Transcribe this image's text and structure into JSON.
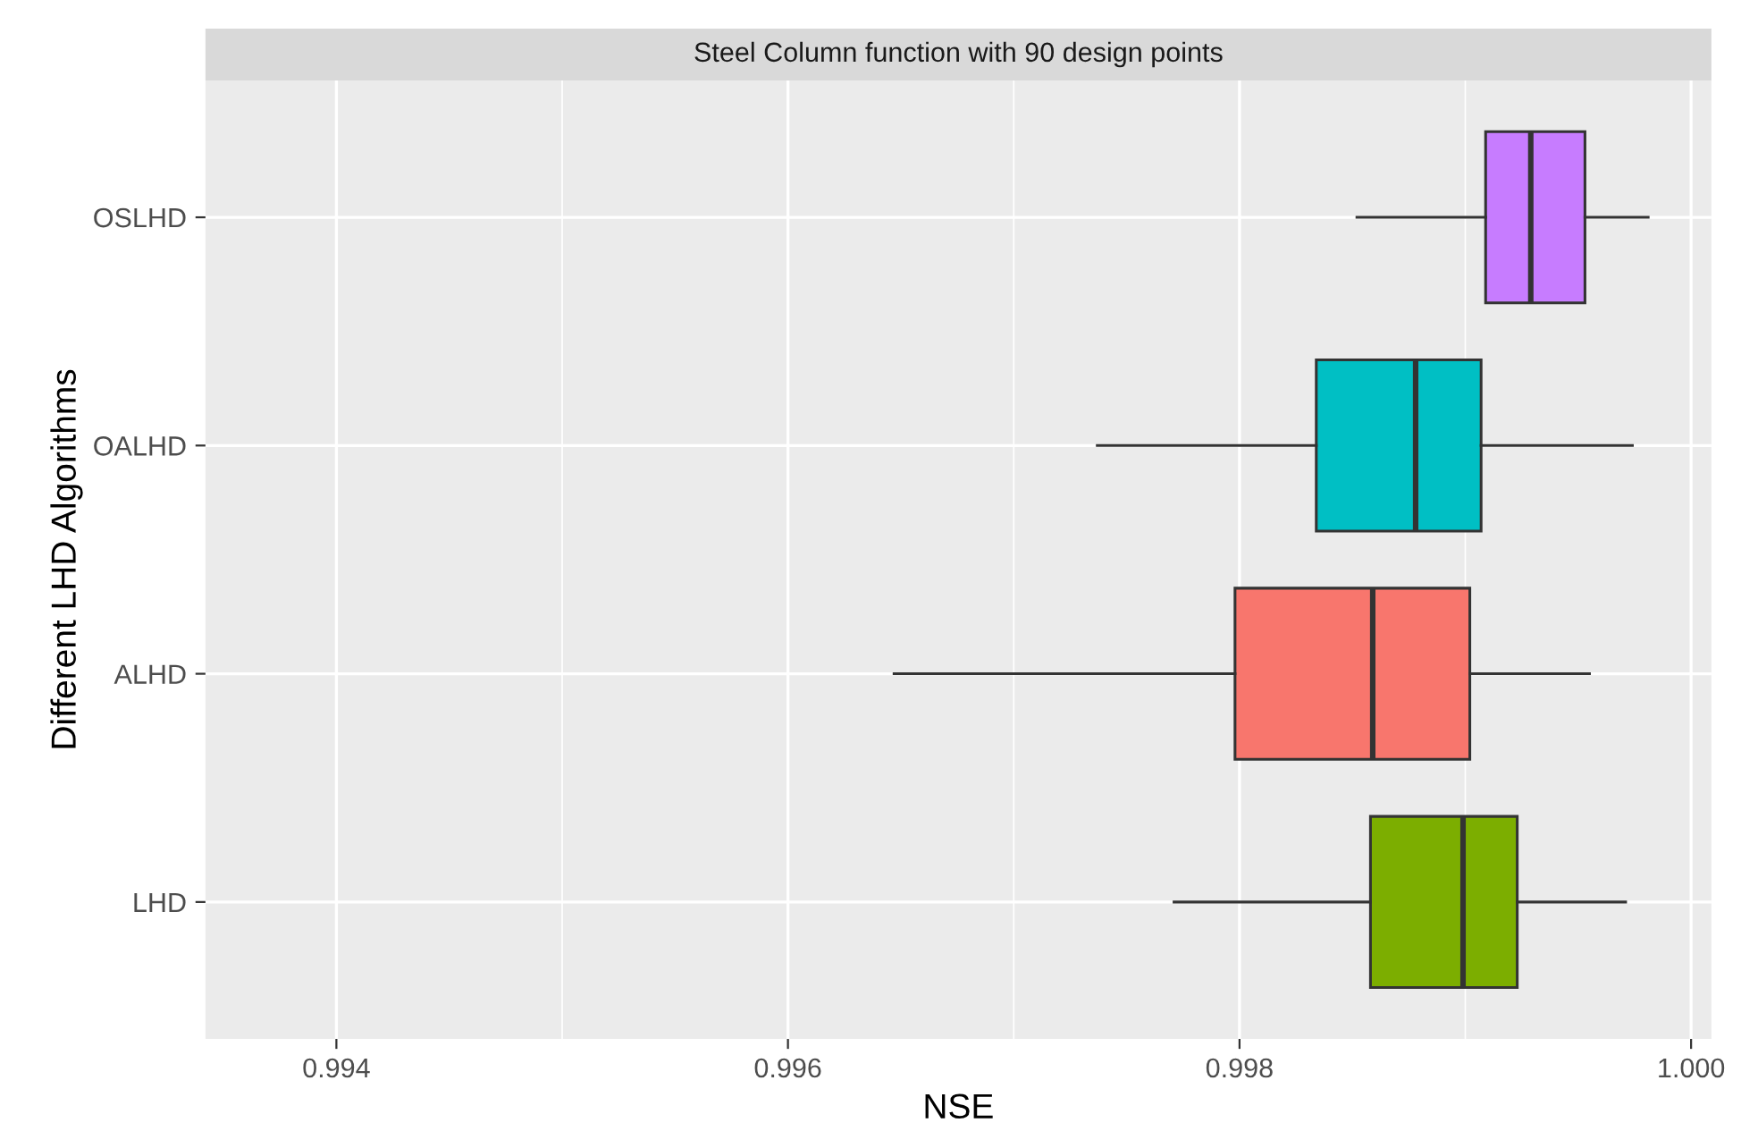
{
  "chart_data": {
    "type": "box",
    "title": "Steel Column function with 90 design points",
    "xlabel": "NSE",
    "ylabel": "Different LHD Algorithms",
    "orientation": "horizontal",
    "categories": [
      "OSLHD",
      "OALHD",
      "ALHD",
      "LHD"
    ],
    "colors": [
      "#c77cff",
      "#00bfc4",
      "#f8766d",
      "#7cae00"
    ],
    "boxes": [
      {
        "low": 0.99852,
        "q1": 0.99909,
        "median": 0.99929,
        "q3": 0.99953,
        "high": 0.99981
      },
      {
        "low": 0.99737,
        "q1": 0.99834,
        "median": 0.99878,
        "q3": 0.99907,
        "high": 0.99974
      },
      {
        "low": 0.99647,
        "q1": 0.99798,
        "median": 0.99859,
        "q3": 0.99902,
        "high": 0.99955
      },
      {
        "low": 0.99771,
        "q1": 0.99858,
        "median": 0.99899,
        "q3": 0.99923,
        "high": 0.99971
      }
    ],
    "xlim": [
      0.99342,
      1.00009
    ],
    "xticks": [
      {
        "value": 0.994,
        "label": "0.994"
      },
      {
        "value": 0.996,
        "label": "0.996"
      },
      {
        "value": 0.998,
        "label": "0.998"
      },
      {
        "value": 1.0,
        "label": "1.000"
      }
    ],
    "grid": true
  }
}
